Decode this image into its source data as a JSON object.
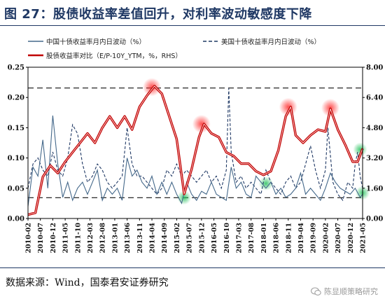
{
  "title": "图 27：股债收益率差值回升，对利率波动敏感度下降",
  "source": "数据来源：Wind，国泰君安证券研究",
  "watermark": "陈显顺策略研究",
  "watermark_icon": "wechat-icon",
  "chart_data": {
    "type": "line",
    "series_meta": [
      {
        "key": "cn",
        "name": "中国十债收益率月内日波动（%）",
        "axis": "left",
        "color": "#44688a",
        "style": "solid"
      },
      {
        "key": "us",
        "name": "美国十债收益率月内日波动（%）",
        "axis": "left",
        "color": "#1f3864",
        "style": "dashed"
      },
      {
        "key": "ratio",
        "name": "股债收益率对比（E/P-10Y_YTM，%，RHS）",
        "axis": "right",
        "color": "#c00000",
        "style": "solid"
      }
    ],
    "x_ticks": [
      "2010-02",
      "2010-07",
      "2010-12",
      "2011-05",
      "2011-10",
      "2012-03",
      "2012-08",
      "2013-01",
      "2013-06",
      "2013-11",
      "2014-04",
      "2014-09",
      "2015-02",
      "2015-07",
      "2015-12",
      "2016-05",
      "2016-10",
      "2017-03",
      "2017-08",
      "2018-01",
      "2018-06",
      "2018-11",
      "2019-04",
      "2019-09",
      "2020-02",
      "2020-07",
      "2020-12",
      "2021-05"
    ],
    "x_range": [
      "2010-02",
      "2021-05"
    ],
    "y_left": {
      "min": 0,
      "max": 0.25,
      "ticks": [
        "0.00",
        "0.05",
        "0.10",
        "0.15",
        "0.20",
        "0.25"
      ]
    },
    "y_right": {
      "min": 0,
      "max": 8,
      "ticks": [
        "0.00",
        "1.60",
        "3.20",
        "4.80",
        "6.40",
        "8.00"
      ]
    },
    "reference_lines": [
      {
        "axis": "right",
        "value": 6.9
      },
      {
        "axis": "right",
        "value": 1.1
      }
    ],
    "highlights": [
      {
        "axis": "right",
        "x": "2014-04",
        "y": 6.95,
        "color": "red"
      },
      {
        "axis": "right",
        "x": "2015-12",
        "y": 5.0,
        "color": "red"
      },
      {
        "axis": "right",
        "x": "2018-11",
        "y": 5.9,
        "color": "red"
      },
      {
        "axis": "right",
        "x": "2020-04",
        "y": 5.85,
        "color": "red"
      },
      {
        "axis": "right",
        "x": "2015-05",
        "y": 1.1,
        "color": "green"
      },
      {
        "axis": "right",
        "x": "2018-02",
        "y": 1.85,
        "color": "green"
      },
      {
        "axis": "right",
        "x": "2021-05",
        "y": 1.35,
        "color": "green"
      },
      {
        "axis": "right",
        "x": "2021-04",
        "y": 3.65,
        "color": "green"
      }
    ],
    "ratio_series": [
      [
        "2010-02",
        0.2
      ],
      [
        "2010-05",
        0.3
      ],
      [
        "2010-08",
        2.2
      ],
      [
        "2010-11",
        2.8
      ],
      [
        "2011-02",
        2.4
      ],
      [
        "2011-05",
        3.0
      ],
      [
        "2011-08",
        3.5
      ],
      [
        "2011-11",
        4.0
      ],
      [
        "2012-02",
        4.5
      ],
      [
        "2012-05",
        4.0
      ],
      [
        "2012-08",
        4.8
      ],
      [
        "2012-11",
        5.4
      ],
      [
        "2013-02",
        4.8
      ],
      [
        "2013-05",
        5.4
      ],
      [
        "2013-08",
        4.7
      ],
      [
        "2013-11",
        5.9
      ],
      [
        "2014-02",
        6.5
      ],
      [
        "2014-05",
        7.0
      ],
      [
        "2014-08",
        6.6
      ],
      [
        "2014-11",
        5.4
      ],
      [
        "2015-02",
        4.2
      ],
      [
        "2015-05",
        1.3
      ],
      [
        "2015-08",
        2.6
      ],
      [
        "2015-11",
        4.3
      ],
      [
        "2016-01",
        5.0
      ],
      [
        "2016-04",
        4.5
      ],
      [
        "2016-07",
        4.3
      ],
      [
        "2016-10",
        3.5
      ],
      [
        "2017-01",
        3.3
      ],
      [
        "2017-04",
        2.9
      ],
      [
        "2017-07",
        2.9
      ],
      [
        "2017-10",
        2.5
      ],
      [
        "2018-01",
        2.3
      ],
      [
        "2018-04",
        2.5
      ],
      [
        "2018-07",
        3.6
      ],
      [
        "2018-10",
        5.4
      ],
      [
        "2018-12",
        5.9
      ],
      [
        "2019-02",
        4.4
      ],
      [
        "2019-05",
        4.0
      ],
      [
        "2019-08",
        4.4
      ],
      [
        "2019-11",
        4.7
      ],
      [
        "2020-02",
        4.6
      ],
      [
        "2020-04",
        5.8
      ],
      [
        "2020-07",
        4.7
      ],
      [
        "2020-10",
        3.9
      ],
      [
        "2021-01",
        3.0
      ],
      [
        "2021-03",
        3.0
      ],
      [
        "2021-05",
        3.7
      ]
    ],
    "cn_series": [
      [
        "2010-02",
        0.02
      ],
      [
        "2010-04",
        0.085
      ],
      [
        "2010-06",
        0.07
      ],
      [
        "2010-08",
        0.13
      ],
      [
        "2010-10",
        0.05
      ],
      [
        "2010-12",
        0.17
      ],
      [
        "2011-02",
        0.09
      ],
      [
        "2011-04",
        0.035
      ],
      [
        "2011-06",
        0.06
      ],
      [
        "2011-08",
        0.03
      ],
      [
        "2011-10",
        0.05
      ],
      [
        "2011-12",
        0.06
      ],
      [
        "2012-02",
        0.04
      ],
      [
        "2012-04",
        0.06
      ],
      [
        "2012-06",
        0.08
      ],
      [
        "2012-08",
        0.03
      ],
      [
        "2012-10",
        0.05
      ],
      [
        "2012-12",
        0.04
      ],
      [
        "2013-02",
        0.05
      ],
      [
        "2013-04",
        0.03
      ],
      [
        "2013-06",
        0.1
      ],
      [
        "2013-08",
        0.07
      ],
      [
        "2013-10",
        0.08
      ],
      [
        "2013-12",
        0.06
      ],
      [
        "2014-02",
        0.05
      ],
      [
        "2014-04",
        0.07
      ],
      [
        "2014-06",
        0.04
      ],
      [
        "2014-08",
        0.06
      ],
      [
        "2014-10",
        0.04
      ],
      [
        "2014-12",
        0.06
      ],
      [
        "2015-02",
        0.04
      ],
      [
        "2015-04",
        0.025
      ],
      [
        "2015-06",
        0.06
      ],
      [
        "2015-08",
        0.04
      ],
      [
        "2015-10",
        0.03
      ],
      [
        "2015-12",
        0.045
      ],
      [
        "2016-02",
        0.04
      ],
      [
        "2016-04",
        0.06
      ],
      [
        "2016-06",
        0.04
      ],
      [
        "2016-08",
        0.035
      ],
      [
        "2016-10",
        0.03
      ],
      [
        "2016-12",
        0.085
      ],
      [
        "2017-02",
        0.05
      ],
      [
        "2017-04",
        0.06
      ],
      [
        "2017-06",
        0.04
      ],
      [
        "2017-08",
        0.035
      ],
      [
        "2017-10",
        0.07
      ],
      [
        "2017-12",
        0.06
      ],
      [
        "2018-02",
        0.05
      ],
      [
        "2018-04",
        0.06
      ],
      [
        "2018-06",
        0.04
      ],
      [
        "2018-08",
        0.05
      ],
      [
        "2018-10",
        0.035
      ],
      [
        "2018-12",
        0.04
      ],
      [
        "2019-02",
        0.05
      ],
      [
        "2019-04",
        0.075
      ],
      [
        "2019-06",
        0.04
      ],
      [
        "2019-08",
        0.05
      ],
      [
        "2019-10",
        0.04
      ],
      [
        "2019-12",
        0.03
      ],
      [
        "2020-02",
        0.05
      ],
      [
        "2020-04",
        0.075
      ],
      [
        "2020-06",
        0.06
      ],
      [
        "2020-08",
        0.05
      ],
      [
        "2020-10",
        0.045
      ],
      [
        "2020-12",
        0.04
      ],
      [
        "2021-02",
        0.05
      ],
      [
        "2021-04",
        0.035
      ],
      [
        "2021-05",
        0.04
      ]
    ],
    "us_series": [
      [
        "2010-02",
        0.05
      ],
      [
        "2010-04",
        0.09
      ],
      [
        "2010-06",
        0.1
      ],
      [
        "2010-08",
        0.08
      ],
      [
        "2010-10",
        0.07
      ],
      [
        "2010-12",
        0.11
      ],
      [
        "2011-02",
        0.08
      ],
      [
        "2011-04",
        0.07
      ],
      [
        "2011-06",
        0.1
      ],
      [
        "2011-08",
        0.155
      ],
      [
        "2011-10",
        0.14
      ],
      [
        "2011-12",
        0.09
      ],
      [
        "2012-02",
        0.06
      ],
      [
        "2012-04",
        0.07
      ],
      [
        "2012-06",
        0.09
      ],
      [
        "2012-08",
        0.08
      ],
      [
        "2012-10",
        0.06
      ],
      [
        "2012-12",
        0.05
      ],
      [
        "2013-02",
        0.06
      ],
      [
        "2013-04",
        0.07
      ],
      [
        "2013-06",
        0.15
      ],
      [
        "2013-08",
        0.09
      ],
      [
        "2013-10",
        0.07
      ],
      [
        "2013-12",
        0.07
      ],
      [
        "2014-02",
        0.06
      ],
      [
        "2014-04",
        0.05
      ],
      [
        "2014-06",
        0.04
      ],
      [
        "2014-08",
        0.05
      ],
      [
        "2014-10",
        0.08
      ],
      [
        "2014-12",
        0.07
      ],
      [
        "2015-02",
        0.09
      ],
      [
        "2015-04",
        0.07
      ],
      [
        "2015-06",
        0.08
      ],
      [
        "2015-08",
        0.07
      ],
      [
        "2015-10",
        0.06
      ],
      [
        "2015-12",
        0.07
      ],
      [
        "2016-02",
        0.08
      ],
      [
        "2016-04",
        0.06
      ],
      [
        "2016-06",
        0.07
      ],
      [
        "2016-08",
        0.05
      ],
      [
        "2016-10",
        0.08
      ],
      [
        "2016-11",
        0.215
      ],
      [
        "2016-12",
        0.11
      ],
      [
        "2017-02",
        0.06
      ],
      [
        "2017-04",
        0.07
      ],
      [
        "2017-06",
        0.05
      ],
      [
        "2017-08",
        0.06
      ],
      [
        "2017-10",
        0.05
      ],
      [
        "2017-12",
        0.04
      ],
      [
        "2018-02",
        0.08
      ],
      [
        "2018-04",
        0.06
      ],
      [
        "2018-06",
        0.05
      ],
      [
        "2018-08",
        0.04
      ],
      [
        "2018-10",
        0.06
      ],
      [
        "2018-12",
        0.07
      ],
      [
        "2019-02",
        0.05
      ],
      [
        "2019-04",
        0.06
      ],
      [
        "2019-06",
        0.09
      ],
      [
        "2019-08",
        0.12
      ],
      [
        "2019-10",
        0.08
      ],
      [
        "2019-12",
        0.05
      ],
      [
        "2020-02",
        0.08
      ],
      [
        "2020-03",
        0.15
      ],
      [
        "2020-05",
        0.06
      ],
      [
        "2020-07",
        0.04
      ],
      [
        "2020-09",
        0.03
      ],
      [
        "2020-11",
        0.06
      ],
      [
        "2021-01",
        0.05
      ],
      [
        "2021-02",
        0.09
      ],
      [
        "2021-03",
        0.11
      ],
      [
        "2021-04",
        0.07
      ],
      [
        "2021-05",
        0.05
      ]
    ]
  }
}
